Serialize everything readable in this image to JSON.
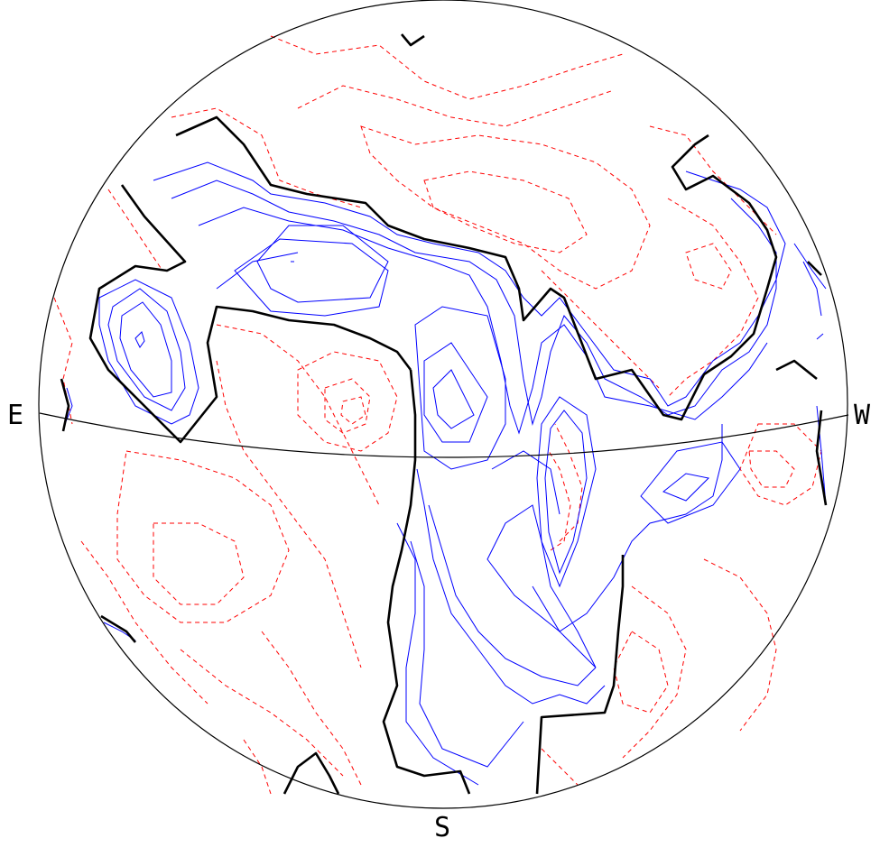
{
  "labels": {
    "east": "E",
    "west": "W",
    "south": "S"
  },
  "colors": {
    "outline": "#000000",
    "zero_contour": "#000000",
    "positive_contour": "#0000ff",
    "negative_contour": "#ff0000",
    "background": "#ffffff"
  },
  "line_styles": {
    "zero_contour": "solid-thick",
    "positive_contour": "solid",
    "negative_contour": "dashed"
  }
}
